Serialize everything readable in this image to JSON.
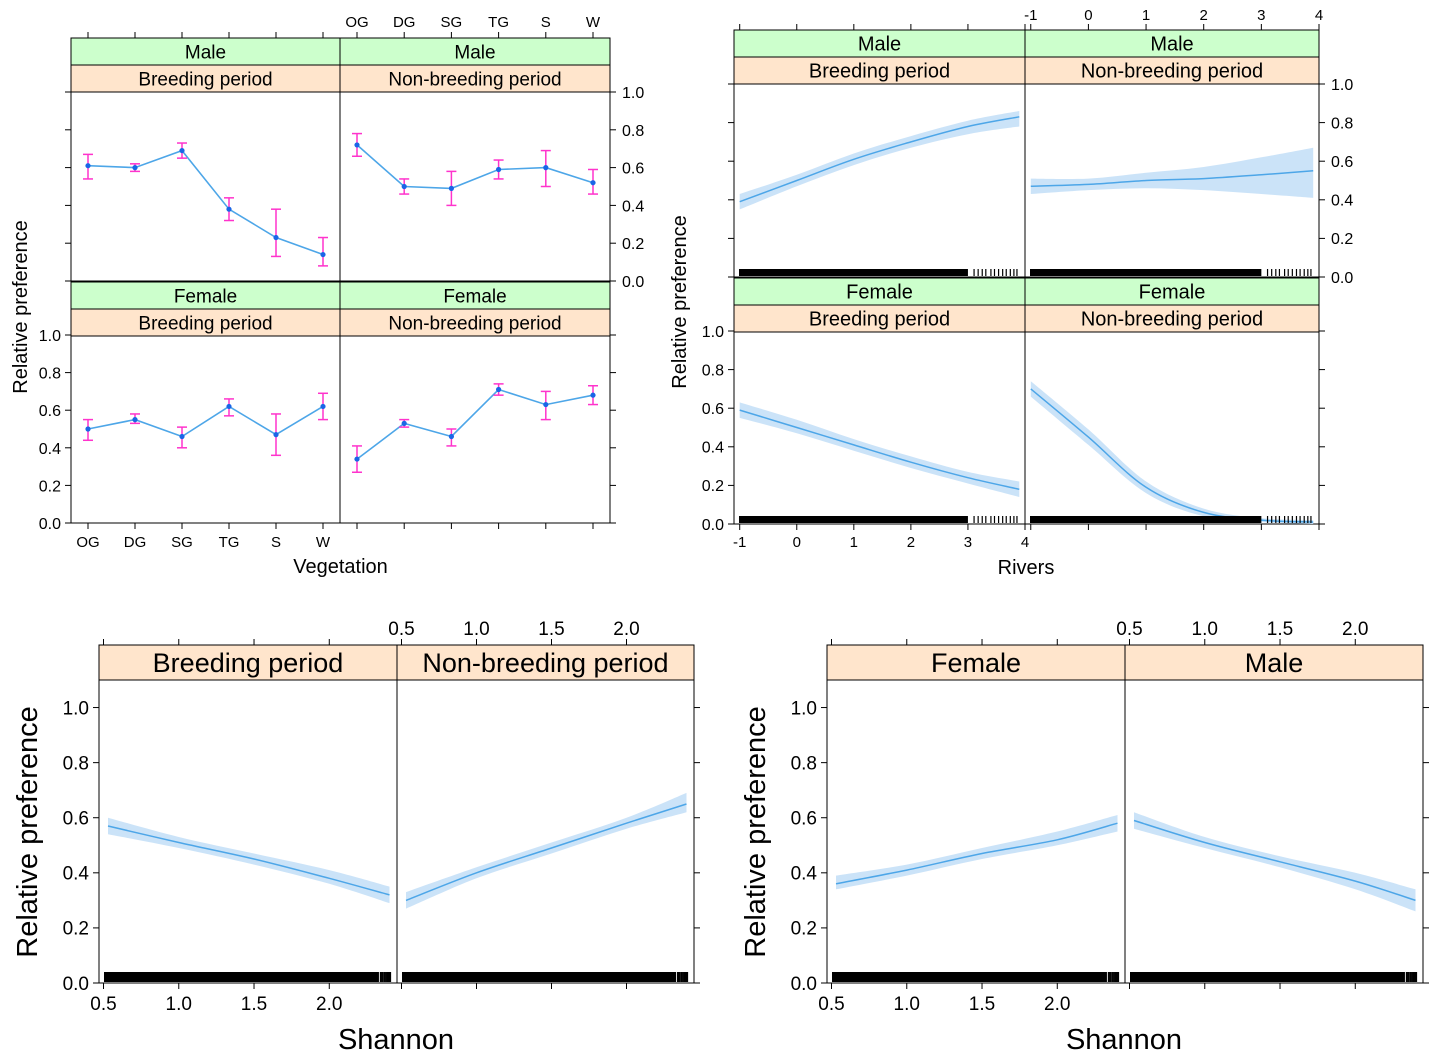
{
  "colors": {
    "strip_top": "#ccffcc",
    "strip_bottom": "#ffe5cc",
    "line": "#4da6e8",
    "band": "#c5e0f7",
    "errorbar": "#ff33cc",
    "point": "#1a66e6",
    "rug": "#000000"
  },
  "chart_data": [
    {
      "id": "vegetation",
      "type": "line",
      "xlabel": "Vegetation",
      "ylabel": "Relative preference",
      "categories": [
        "OG",
        "DG",
        "SG",
        "TG",
        "S",
        "W"
      ],
      "ylim": [
        0,
        1
      ],
      "yticks": [
        "0.0",
        "0.2",
        "0.4",
        "0.6",
        "0.8",
        "1.0"
      ],
      "panels": [
        {
          "strip_top": "Male",
          "strip_bottom": "Breeding period",
          "values": [
            0.61,
            0.6,
            0.69,
            0.38,
            0.23,
            0.14
          ],
          "lower": [
            0.54,
            0.58,
            0.65,
            0.32,
            0.13,
            0.08
          ],
          "upper": [
            0.67,
            0.62,
            0.73,
            0.44,
            0.38,
            0.23
          ]
        },
        {
          "strip_top": "Male",
          "strip_bottom": "Non-breeding period",
          "values": [
            0.72,
            0.5,
            0.49,
            0.59,
            0.6,
            0.52
          ],
          "lower": [
            0.66,
            0.46,
            0.4,
            0.54,
            0.5,
            0.46
          ],
          "upper": [
            0.78,
            0.54,
            0.58,
            0.64,
            0.69,
            0.59
          ]
        },
        {
          "strip_top": "Female",
          "strip_bottom": "Breeding period",
          "values": [
            0.5,
            0.55,
            0.46,
            0.62,
            0.47,
            0.62
          ],
          "lower": [
            0.44,
            0.53,
            0.4,
            0.57,
            0.36,
            0.55
          ],
          "upper": [
            0.55,
            0.58,
            0.51,
            0.66,
            0.58,
            0.69
          ]
        },
        {
          "strip_top": "Female",
          "strip_bottom": "Non-breeding period",
          "values": [
            0.34,
            0.53,
            0.46,
            0.71,
            0.63,
            0.68
          ],
          "lower": [
            0.27,
            0.51,
            0.41,
            0.68,
            0.55,
            0.63
          ],
          "upper": [
            0.41,
            0.55,
            0.5,
            0.74,
            0.7,
            0.73
          ]
        }
      ]
    },
    {
      "id": "rivers",
      "type": "line",
      "xlabel": "Rivers",
      "ylabel": "Relative preference",
      "xlim": [
        -1.1,
        4.0
      ],
      "xticks": [
        "-1",
        "0",
        "1",
        "2",
        "3",
        "4"
      ],
      "ylim": [
        0,
        1
      ],
      "yticks": [
        "0.0",
        "0.2",
        "0.4",
        "0.6",
        "0.8",
        "1.0"
      ],
      "x": [
        -1,
        0,
        1,
        2,
        3,
        3.9
      ],
      "panels": [
        {
          "strip_top": "Male",
          "strip_bottom": "Breeding period",
          "values": [
            0.39,
            0.5,
            0.61,
            0.7,
            0.78,
            0.83
          ],
          "lower": [
            0.35,
            0.47,
            0.58,
            0.67,
            0.74,
            0.78
          ],
          "upper": [
            0.43,
            0.53,
            0.64,
            0.73,
            0.81,
            0.86
          ]
        },
        {
          "strip_top": "Male",
          "strip_bottom": "Non-breeding period",
          "values": [
            0.47,
            0.48,
            0.5,
            0.51,
            0.53,
            0.55
          ],
          "lower": [
            0.43,
            0.45,
            0.46,
            0.45,
            0.43,
            0.41
          ],
          "upper": [
            0.51,
            0.51,
            0.54,
            0.57,
            0.62,
            0.67
          ]
        },
        {
          "strip_top": "Female",
          "strip_bottom": "Breeding period",
          "values": [
            0.59,
            0.5,
            0.41,
            0.32,
            0.24,
            0.18
          ],
          "lower": [
            0.55,
            0.47,
            0.38,
            0.29,
            0.21,
            0.14
          ],
          "upper": [
            0.63,
            0.54,
            0.44,
            0.35,
            0.27,
            0.22
          ]
        },
        {
          "strip_top": "Female",
          "strip_bottom": "Non-breeding period",
          "values": [
            0.7,
            0.45,
            0.19,
            0.06,
            0.02,
            0.01
          ],
          "lower": [
            0.66,
            0.41,
            0.16,
            0.04,
            0.01,
            0.0
          ],
          "upper": [
            0.74,
            0.49,
            0.22,
            0.08,
            0.03,
            0.02
          ]
        }
      ],
      "rug_dense_until": 3.0
    },
    {
      "id": "shannon-period",
      "type": "line",
      "xlabel": "Shannon",
      "ylabel": "Relative preference",
      "xlim": [
        0.47,
        2.45
      ],
      "xticks": [
        "0.5",
        "1.0",
        "1.5",
        "2.0"
      ],
      "ylim": [
        0,
        1.1
      ],
      "yticks": [
        "0.0",
        "0.2",
        "0.4",
        "0.6",
        "0.8",
        "1.0"
      ],
      "x": [
        0.53,
        1.0,
        1.5,
        2.0,
        2.4
      ],
      "panels": [
        {
          "strip_bottom": "Breeding period",
          "values": [
            0.57,
            0.51,
            0.45,
            0.38,
            0.32
          ],
          "lower": [
            0.54,
            0.49,
            0.43,
            0.36,
            0.29
          ],
          "upper": [
            0.6,
            0.53,
            0.47,
            0.41,
            0.35
          ]
        },
        {
          "strip_bottom": "Non-breeding period",
          "values": [
            0.3,
            0.4,
            0.49,
            0.58,
            0.65
          ],
          "lower": [
            0.27,
            0.38,
            0.47,
            0.56,
            0.62
          ],
          "upper": [
            0.33,
            0.42,
            0.51,
            0.6,
            0.69
          ]
        }
      ],
      "rug_dense_until": 2.33
    },
    {
      "id": "shannon-sex",
      "type": "line",
      "xlabel": "Shannon",
      "ylabel": "Relative preference",
      "xlim": [
        0.47,
        2.45
      ],
      "xticks": [
        "0.5",
        "1.0",
        "1.5",
        "2.0"
      ],
      "ylim": [
        0,
        1.1
      ],
      "yticks": [
        "0.0",
        "0.2",
        "0.4",
        "0.6",
        "0.8",
        "1.0"
      ],
      "x": [
        0.53,
        1.0,
        1.5,
        2.0,
        2.4
      ],
      "panels": [
        {
          "strip_bottom": "Female",
          "values": [
            0.36,
            0.41,
            0.47,
            0.52,
            0.58
          ],
          "lower": [
            0.34,
            0.39,
            0.45,
            0.5,
            0.55
          ],
          "upper": [
            0.39,
            0.43,
            0.49,
            0.55,
            0.61
          ]
        },
        {
          "strip_bottom": "Male",
          "values": [
            0.59,
            0.51,
            0.44,
            0.37,
            0.3
          ],
          "lower": [
            0.56,
            0.49,
            0.42,
            0.34,
            0.26
          ],
          "upper": [
            0.62,
            0.53,
            0.46,
            0.4,
            0.34
          ]
        }
      ],
      "rug_dense_until": 2.33
    }
  ]
}
